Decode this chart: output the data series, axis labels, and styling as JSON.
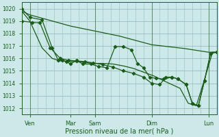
{
  "xlabel": "Pression niveau de la mer( hPa )",
  "bg_color": "#cce8e8",
  "grid_color": "#99bbbb",
  "line_color": "#1a5c1a",
  "ylim": [
    1011.5,
    1020.5
  ],
  "yticks": [
    1012,
    1013,
    1014,
    1015,
    1016,
    1017,
    1018,
    1019,
    1020
  ],
  "xlim": [
    0,
    192
  ],
  "xtick_positions": [
    8,
    48,
    72,
    128,
    184
  ],
  "xtick_labels": [
    "Ven",
    "Mar",
    "Sam",
    "Dim",
    "Lun"
  ],
  "vlines": [
    8,
    72,
    128,
    184
  ],
  "line1_nomarker": {
    "x": [
      0,
      8,
      48,
      72,
      96,
      128,
      160,
      184,
      192
    ],
    "y": [
      1019.8,
      1019.5,
      1018.6,
      1018.2,
      1017.8,
      1017.1,
      1016.8,
      1016.5,
      1016.5
    ]
  },
  "line2_nomarker": {
    "x": [
      0,
      8,
      20,
      30,
      38,
      46,
      52,
      60,
      70,
      80,
      90,
      100,
      110,
      120,
      130,
      140,
      148,
      156,
      164,
      172,
      180,
      188,
      192
    ],
    "y": [
      1019.8,
      1019.0,
      1016.85,
      1016.0,
      1015.8,
      1015.75,
      1015.75,
      1015.7,
      1015.6,
      1015.6,
      1015.55,
      1015.4,
      1015.2,
      1014.9,
      1014.6,
      1014.2,
      1013.9,
      1013.6,
      1012.4,
      1012.2,
      1014.3,
      1016.5,
      1016.5
    ]
  },
  "line3_marker": {
    "x": [
      0,
      10,
      18,
      28,
      38,
      46,
      54,
      62,
      70,
      80,
      90,
      100,
      110,
      120,
      128,
      136,
      142,
      148,
      154,
      162,
      168,
      174,
      180,
      186,
      192
    ],
    "y": [
      1019.0,
      1018.9,
      1018.85,
      1016.85,
      1016.0,
      1015.85,
      1015.8,
      1015.75,
      1015.65,
      1015.5,
      1015.3,
      1015.0,
      1014.8,
      1014.5,
      1014.0,
      1013.9,
      1014.5,
      1014.5,
      1014.35,
      1013.9,
      1012.4,
      1012.2,
      1014.2,
      1016.4,
      1016.5
    ]
  },
  "line4_marker": {
    "x": [
      0,
      8,
      20,
      30,
      36,
      40,
      44,
      48,
      54,
      60,
      68,
      76,
      84,
      92,
      100,
      108,
      114,
      120,
      126,
      132,
      140,
      148,
      154,
      162,
      168,
      174,
      180,
      186,
      192
    ],
    "y": [
      1020.0,
      1019.3,
      1019.1,
      1016.85,
      1015.85,
      1015.85,
      1015.75,
      1015.55,
      1015.85,
      1015.55,
      1015.55,
      1015.35,
      1015.25,
      1016.95,
      1016.95,
      1016.7,
      1015.6,
      1015.25,
      1014.5,
      1014.4,
      1014.35,
      1014.5,
      1014.35,
      1013.9,
      1012.4,
      1012.2,
      1014.2,
      1016.4,
      1016.5
    ]
  }
}
